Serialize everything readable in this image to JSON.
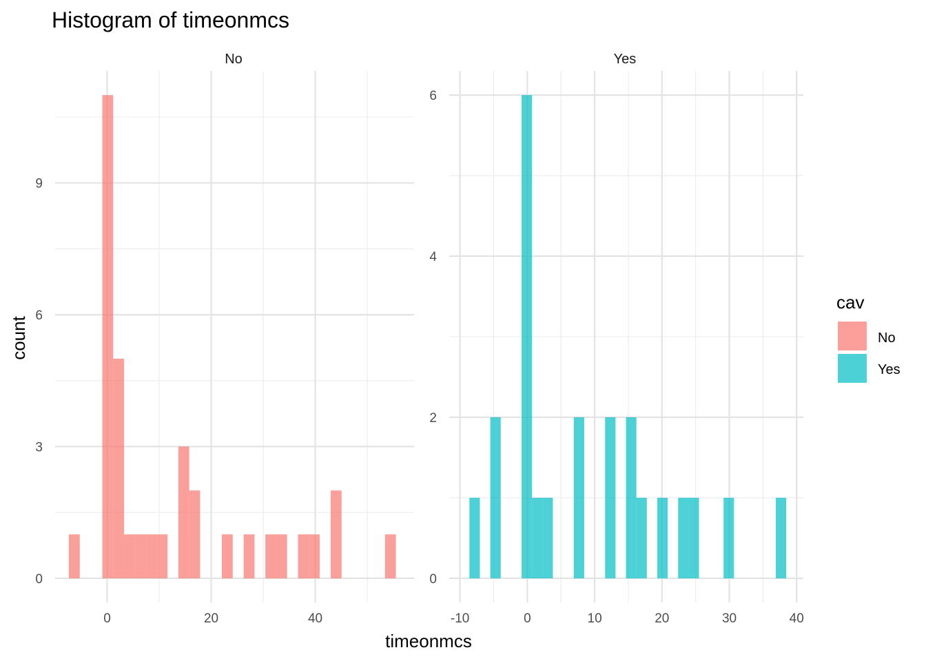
{
  "chart_data": {
    "type": "bar",
    "title": "Histogram of timeonmcs",
    "xlabel": "timeonmcs",
    "ylabel": "count",
    "grid": true,
    "legend": {
      "title": "cav",
      "position": "right",
      "entries": [
        {
          "label": "No",
          "color": "#F8766D"
        },
        {
          "label": "Yes",
          "color": "#00BFC4"
        }
      ]
    },
    "panels": [
      {
        "strip": "No",
        "color": "#F8766D",
        "xlim": [
          -10,
          59
        ],
        "ylim": [
          -0.55,
          11.55
        ],
        "x_ticks": [
          0,
          20,
          40
        ],
        "x_tick_labels": [
          "0",
          "20",
          "40"
        ],
        "y_ticks": [
          0,
          3,
          6,
          9
        ],
        "y_tick_labels": [
          "0",
          "3",
          "6",
          "9"
        ],
        "bin_width": 2.09,
        "bins": [
          {
            "start": -7.35,
            "count": 1
          },
          {
            "start": -0.93,
            "count": 11
          },
          {
            "start": 1.16,
            "count": 5
          },
          {
            "start": 3.25,
            "count": 1
          },
          {
            "start": 5.34,
            "count": 1
          },
          {
            "start": 7.43,
            "count": 1
          },
          {
            "start": 9.52,
            "count": 1
          },
          {
            "start": 13.69,
            "count": 3
          },
          {
            "start": 15.78,
            "count": 2
          },
          {
            "start": 22.05,
            "count": 1
          },
          {
            "start": 26.24,
            "count": 1
          },
          {
            "start": 30.41,
            "count": 1
          },
          {
            "start": 32.5,
            "count": 1
          },
          {
            "start": 36.69,
            "count": 1
          },
          {
            "start": 38.78,
            "count": 1
          },
          {
            "start": 42.97,
            "count": 2
          },
          {
            "start": 53.41,
            "count": 1
          }
        ]
      },
      {
        "strip": "Yes",
        "color": "#00BFC4",
        "xlim": [
          -11.6,
          41
        ],
        "ylim": [
          -0.3,
          6.3
        ],
        "x_ticks": [
          -10,
          0,
          10,
          20,
          30,
          40
        ],
        "x_tick_labels": [
          "-10",
          "0",
          "10",
          "20",
          "30",
          "40"
        ],
        "y_ticks": [
          0,
          2,
          4,
          6
        ],
        "y_tick_labels": [
          "0",
          "2",
          "4",
          "6"
        ],
        "bin_width": 1.55,
        "bins": [
          {
            "start": -8.6,
            "count": 1
          },
          {
            "start": -5.5,
            "count": 2
          },
          {
            "start": -0.85,
            "count": 6
          },
          {
            "start": 0.7,
            "count": 1
          },
          {
            "start": 2.25,
            "count": 1
          },
          {
            "start": 6.9,
            "count": 2
          },
          {
            "start": 11.55,
            "count": 2
          },
          {
            "start": 14.65,
            "count": 2
          },
          {
            "start": 16.2,
            "count": 1
          },
          {
            "start": 19.3,
            "count": 1
          },
          {
            "start": 22.4,
            "count": 1
          },
          {
            "start": 23.95,
            "count": 1
          },
          {
            "start": 29.15,
            "count": 1
          },
          {
            "start": 36.9,
            "count": 1
          }
        ]
      }
    ]
  }
}
